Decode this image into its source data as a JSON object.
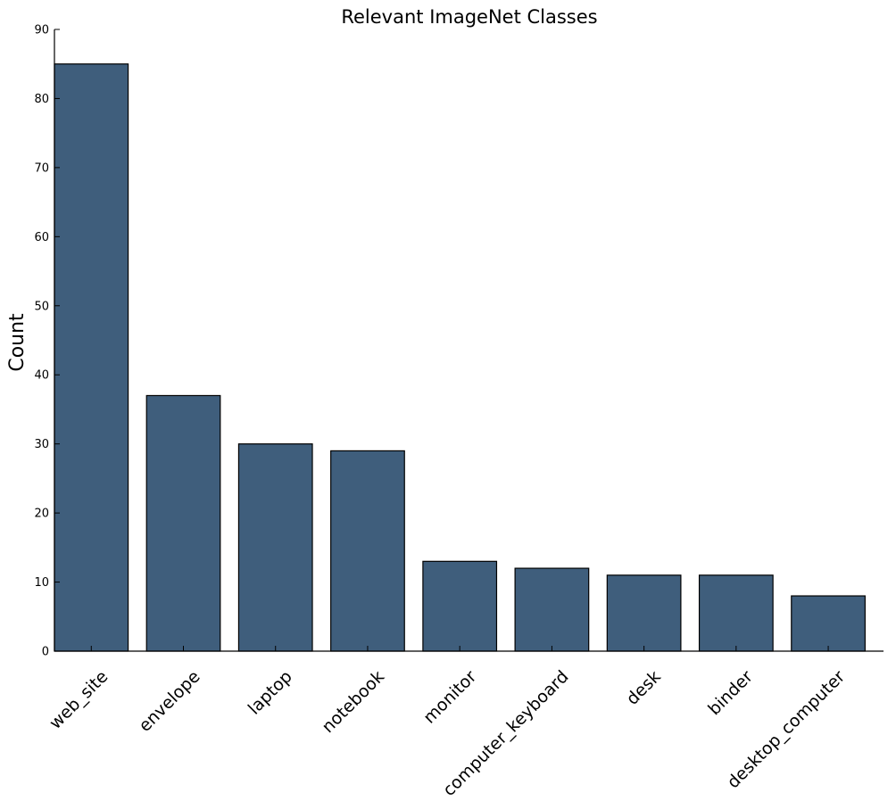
{
  "chart_data": {
    "type": "bar",
    "title": "Relevant ImageNet Classes",
    "xlabel": "",
    "ylabel": "Count",
    "categories": [
      "web_site",
      "envelope",
      "laptop",
      "notebook",
      "monitor",
      "computer_keyboard",
      "desk",
      "binder",
      "desktop_computer"
    ],
    "values": [
      85,
      37,
      30,
      29,
      13,
      12,
      11,
      11,
      8
    ],
    "ylim": [
      0,
      90
    ],
    "yticks": [
      "0",
      "10",
      "20",
      "30",
      "40",
      "50",
      "60",
      "70",
      "80",
      "90"
    ],
    "grid": false,
    "bar_color": "#3f5e7c",
    "edge_color": "#000000"
  }
}
